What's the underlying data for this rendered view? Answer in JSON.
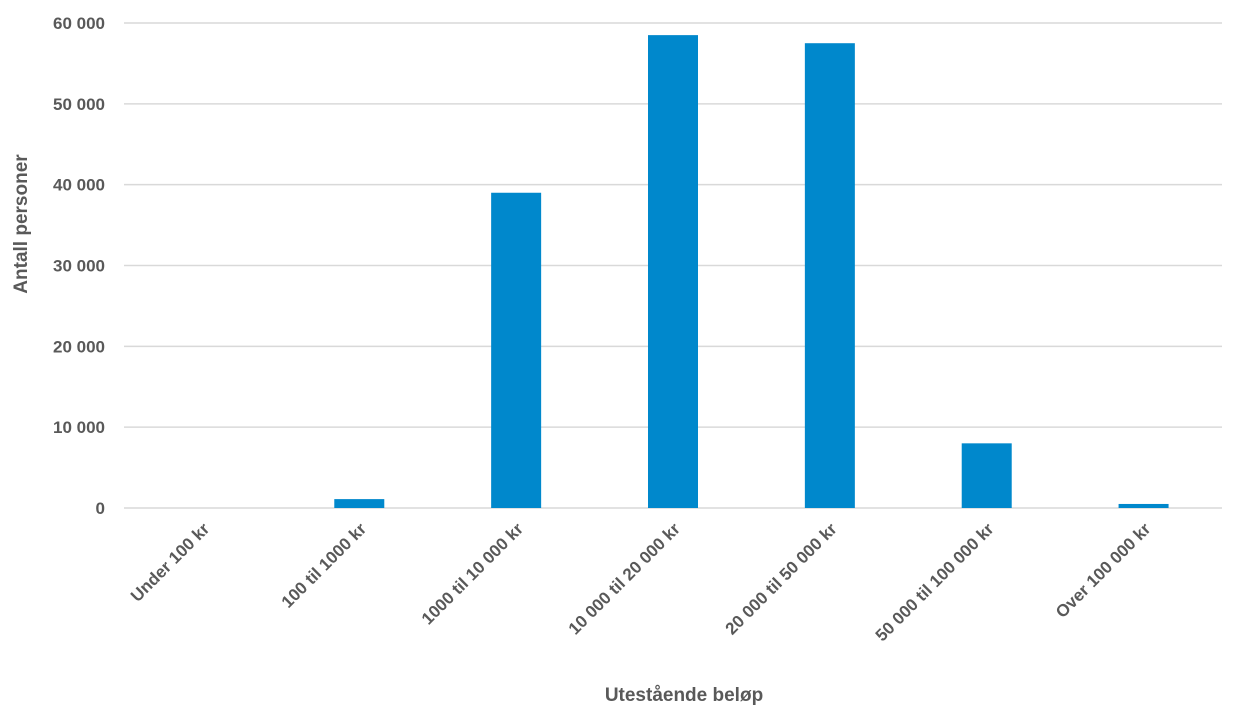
{
  "chart_data": {
    "type": "bar",
    "title": "",
    "xlabel": "Utestående beløp",
    "ylabel": "Antall personer",
    "categories": [
      "Under 100 kr",
      "100 til 1000 kr",
      "1000 til 10 000 kr",
      "10 000 til 20 000 kr",
      "20 000 til 50 000 kr",
      "50 000 til 100 000 kr",
      "Over 100 000 kr"
    ],
    "values": [
      0,
      1100,
      39000,
      58500,
      57500,
      8000,
      500
    ],
    "ylim": [
      0,
      60000
    ],
    "yticks": [
      0,
      10000,
      20000,
      30000,
      40000,
      50000,
      60000
    ],
    "ytick_labels": [
      "0",
      "10 000",
      "20 000",
      "30 000",
      "40 000",
      "50 000",
      "60 000"
    ],
    "bar_color": "#0088cc",
    "grid": true,
    "legend": "none"
  }
}
